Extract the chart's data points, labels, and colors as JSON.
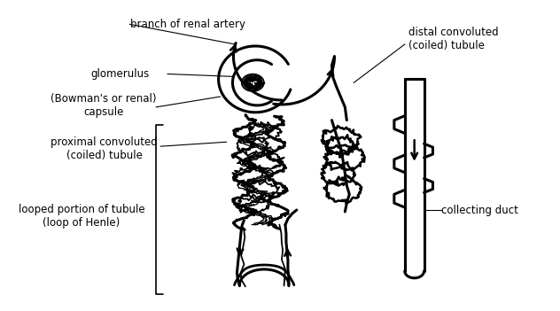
{
  "background_color": "#ffffff",
  "line_color": "#000000",
  "text_color": "#000000",
  "font_size": 8.5,
  "labels": {
    "branch_of_renal_artery": "branch of renal artery",
    "glomerulus": "glomerulus",
    "bowmans_capsule": "(Bowman's or renal)\ncapsule",
    "proximal_tubule": "proximal convoluted\n(coiled) tubule",
    "looped_portion": "looped portion of tubule\n(loop of Henle)",
    "distal_tubule": "distal convoluted\n(coiled) tubule",
    "collecting_duct": "collecting duct"
  }
}
